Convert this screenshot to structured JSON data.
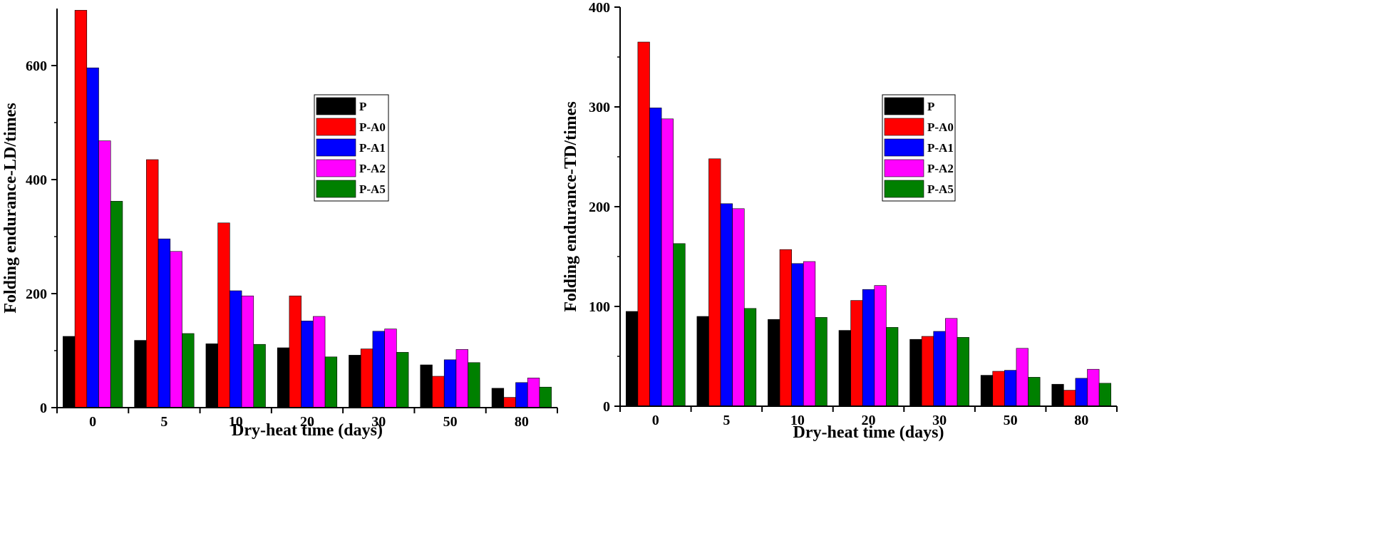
{
  "chart_data": [
    {
      "type": "bar",
      "id": "ld",
      "xlabel": "Dry-heat time (days)",
      "ylabel": "Folding endurance-LD/times",
      "ylim": [
        0,
        700
      ],
      "yticks": [
        0,
        200,
        400,
        600
      ],
      "categories": [
        "0",
        "5",
        "10",
        "20",
        "30",
        "50",
        "80"
      ],
      "legend_position": "upper-right",
      "series": [
        {
          "name": "P",
          "color": "#000000",
          "values": [
            125,
            118,
            112,
            105,
            92,
            75,
            34
          ]
        },
        {
          "name": "P-A0",
          "color": "#ff0000",
          "values": [
            697,
            435,
            324,
            196,
            103,
            55,
            18
          ]
        },
        {
          "name": "P-A1",
          "color": "#0000ff",
          "values": [
            596,
            296,
            205,
            152,
            134,
            84,
            44
          ]
        },
        {
          "name": "P-A2",
          "color": "#ff00ff",
          "values": [
            468,
            274,
            196,
            160,
            138,
            102,
            52
          ]
        },
        {
          "name": "P-A5",
          "color": "#008000",
          "values": [
            362,
            130,
            111,
            89,
            97,
            79,
            36
          ]
        }
      ]
    },
    {
      "type": "bar",
      "id": "td",
      "xlabel": "Dry-heat time (days)",
      "ylabel": "Folding endurance-TD/times",
      "ylim": [
        0,
        400
      ],
      "yticks": [
        0,
        100,
        200,
        300,
        400
      ],
      "categories": [
        "0",
        "5",
        "10",
        "20",
        "30",
        "50",
        "80"
      ],
      "legend_position": "upper-right",
      "series": [
        {
          "name": "P",
          "color": "#000000",
          "values": [
            95,
            90,
            87,
            76,
            67,
            31,
            22
          ]
        },
        {
          "name": "P-A0",
          "color": "#ff0000",
          "values": [
            365,
            248,
            157,
            106,
            70,
            35,
            16
          ]
        },
        {
          "name": "P-A1",
          "color": "#0000ff",
          "values": [
            299,
            203,
            143,
            117,
            75,
            36,
            28
          ]
        },
        {
          "name": "P-A2",
          "color": "#ff00ff",
          "values": [
            288,
            198,
            145,
            121,
            88,
            58,
            37
          ]
        },
        {
          "name": "P-A5",
          "color": "#008000",
          "values": [
            163,
            98,
            89,
            79,
            69,
            29,
            23
          ]
        }
      ]
    }
  ]
}
